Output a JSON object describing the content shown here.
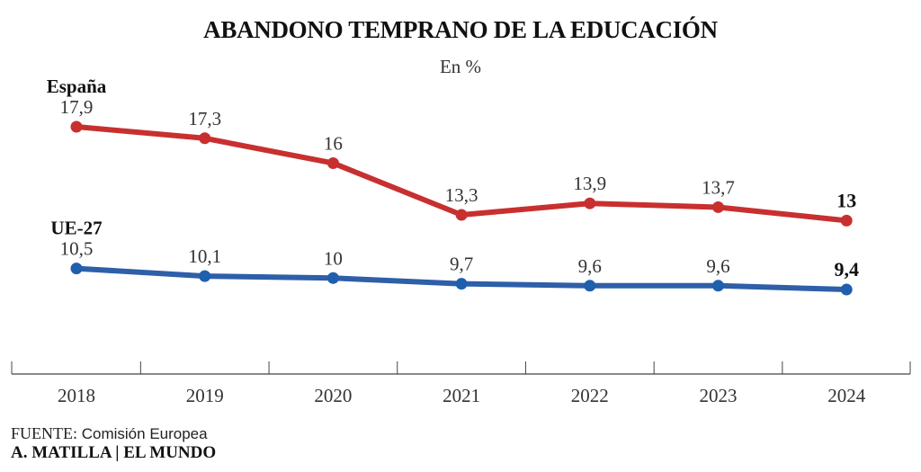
{
  "chart_data": {
    "type": "line",
    "title": "ABANDONO TEMPRANO DE LA EDUCACIÓN",
    "subtitle": "En %",
    "xlabel": "",
    "ylabel": "",
    "categories": [
      "2018",
      "2019",
      "2020",
      "2021",
      "2022",
      "2023",
      "2024"
    ],
    "series": [
      {
        "name": "España",
        "color": "#c8302f",
        "values": [
          17.9,
          17.3,
          16,
          13.3,
          13.9,
          13.7,
          13
        ],
        "labels": [
          "17,9",
          "17,3",
          "16",
          "13,3",
          "13,9",
          "13,7",
          "13"
        ]
      },
      {
        "name": "UE-27",
        "color": "#2e5fa8",
        "point_color": "#1e5fae",
        "values": [
          10.5,
          10.1,
          10,
          9.7,
          9.6,
          9.6,
          9.4
        ],
        "labels": [
          "10,5",
          "10,1",
          "10",
          "9,7",
          "9,6",
          "9,6",
          "9,4"
        ]
      }
    ],
    "grid": false,
    "legend": "inline-left",
    "last_label_bold": true
  },
  "footer": {
    "source_label": "FUENTE:",
    "source_text": "Comisión Europea",
    "credit": "A. MATILLA | EL MUNDO"
  }
}
